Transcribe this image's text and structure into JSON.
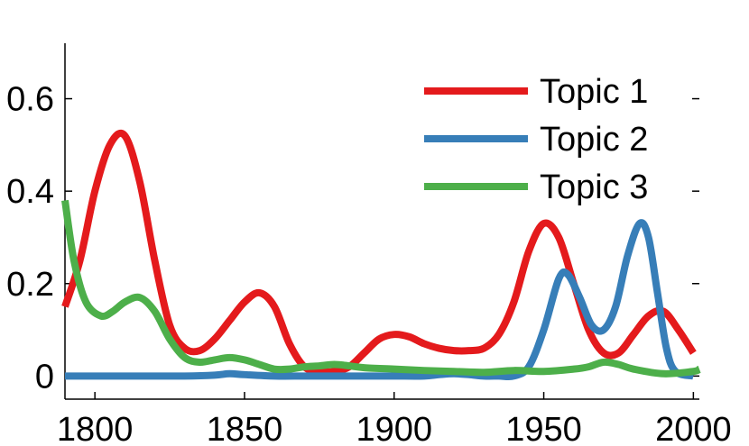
{
  "chart_data": {
    "type": "line",
    "title": "",
    "xlabel": "",
    "ylabel": "",
    "xlim": [
      1790,
      2002
    ],
    "ylim": [
      -0.05,
      0.72
    ],
    "x_ticks": [
      1800,
      1850,
      1900,
      1950,
      2000
    ],
    "x_tick_labels": [
      "1800",
      "1850",
      "1900",
      "1950",
      "2000"
    ],
    "y_ticks": [
      0,
      0.2,
      0.4,
      0.6
    ],
    "y_tick_labels": [
      "0",
      "0.2",
      "0.4",
      "0.6"
    ],
    "grid": false,
    "legend_position": "top-right",
    "series": [
      {
        "name": "Topic 1",
        "color": "#e41a1c",
        "points": [
          [
            1790,
            0.15
          ],
          [
            1795,
            0.25
          ],
          [
            1800,
            0.4
          ],
          [
            1805,
            0.5
          ],
          [
            1810,
            0.52
          ],
          [
            1815,
            0.42
          ],
          [
            1820,
            0.25
          ],
          [
            1825,
            0.11
          ],
          [
            1830,
            0.06
          ],
          [
            1835,
            0.055
          ],
          [
            1840,
            0.08
          ],
          [
            1845,
            0.12
          ],
          [
            1850,
            0.16
          ],
          [
            1855,
            0.18
          ],
          [
            1860,
            0.15
          ],
          [
            1865,
            0.07
          ],
          [
            1870,
            0.02
          ],
          [
            1875,
            0.01
          ],
          [
            1880,
            0.01
          ],
          [
            1885,
            0.02
          ],
          [
            1890,
            0.05
          ],
          [
            1895,
            0.08
          ],
          [
            1900,
            0.09
          ],
          [
            1905,
            0.085
          ],
          [
            1910,
            0.07
          ],
          [
            1915,
            0.06
          ],
          [
            1920,
            0.055
          ],
          [
            1925,
            0.055
          ],
          [
            1930,
            0.06
          ],
          [
            1935,
            0.09
          ],
          [
            1940,
            0.16
          ],
          [
            1945,
            0.27
          ],
          [
            1950,
            0.33
          ],
          [
            1955,
            0.3
          ],
          [
            1960,
            0.2
          ],
          [
            1965,
            0.1
          ],
          [
            1970,
            0.05
          ],
          [
            1975,
            0.05
          ],
          [
            1980,
            0.09
          ],
          [
            1985,
            0.13
          ],
          [
            1990,
            0.14
          ],
          [
            1995,
            0.1
          ],
          [
            2000,
            0.05
          ]
        ]
      },
      {
        "name": "Topic 2",
        "color": "#377eb8",
        "points": [
          [
            1790,
            0.0
          ],
          [
            1800,
            0.0
          ],
          [
            1810,
            0.0
          ],
          [
            1820,
            0.0
          ],
          [
            1830,
            0.0
          ],
          [
            1840,
            0.002
          ],
          [
            1845,
            0.005
          ],
          [
            1850,
            0.003
          ],
          [
            1860,
            0.0
          ],
          [
            1870,
            0.0
          ],
          [
            1880,
            0.0
          ],
          [
            1890,
            0.0
          ],
          [
            1900,
            0.0
          ],
          [
            1910,
            0.0
          ],
          [
            1915,
            0.003
          ],
          [
            1920,
            0.005
          ],
          [
            1925,
            0.003
          ],
          [
            1930,
            0.0
          ],
          [
            1935,
            0.0
          ],
          [
            1940,
            0.0
          ],
          [
            1945,
            0.02
          ],
          [
            1950,
            0.1
          ],
          [
            1955,
            0.21
          ],
          [
            1958,
            0.22
          ],
          [
            1962,
            0.17
          ],
          [
            1966,
            0.11
          ],
          [
            1970,
            0.1
          ],
          [
            1974,
            0.15
          ],
          [
            1978,
            0.26
          ],
          [
            1982,
            0.33
          ],
          [
            1985,
            0.3
          ],
          [
            1988,
            0.18
          ],
          [
            1991,
            0.06
          ],
          [
            1994,
            0.01
          ],
          [
            2000,
            0.0
          ]
        ]
      },
      {
        "name": "Topic 3",
        "color": "#4daf4a",
        "points": [
          [
            1790,
            0.38
          ],
          [
            1793,
            0.25
          ],
          [
            1797,
            0.16
          ],
          [
            1802,
            0.13
          ],
          [
            1806,
            0.14
          ],
          [
            1810,
            0.16
          ],
          [
            1815,
            0.17
          ],
          [
            1820,
            0.14
          ],
          [
            1825,
            0.08
          ],
          [
            1830,
            0.04
          ],
          [
            1835,
            0.03
          ],
          [
            1840,
            0.035
          ],
          [
            1845,
            0.04
          ],
          [
            1850,
            0.035
          ],
          [
            1855,
            0.025
          ],
          [
            1860,
            0.015
          ],
          [
            1865,
            0.015
          ],
          [
            1870,
            0.02
          ],
          [
            1875,
            0.022
          ],
          [
            1880,
            0.025
          ],
          [
            1885,
            0.022
          ],
          [
            1890,
            0.018
          ],
          [
            1900,
            0.015
          ],
          [
            1910,
            0.012
          ],
          [
            1920,
            0.01
          ],
          [
            1930,
            0.008
          ],
          [
            1940,
            0.012
          ],
          [
            1950,
            0.01
          ],
          [
            1960,
            0.015
          ],
          [
            1965,
            0.02
          ],
          [
            1970,
            0.03
          ],
          [
            1975,
            0.025
          ],
          [
            1980,
            0.015
          ],
          [
            1990,
            0.005
          ],
          [
            2000,
            0.01
          ],
          [
            2002,
            0.015
          ]
        ]
      }
    ]
  }
}
